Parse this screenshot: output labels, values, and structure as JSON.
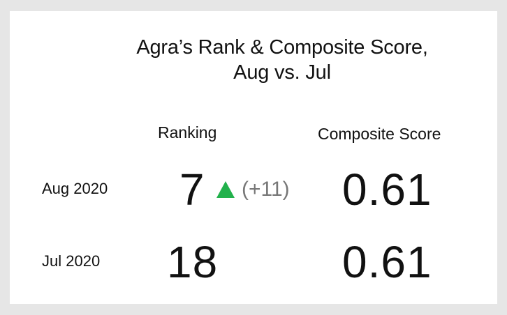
{
  "title": {
    "line1": "Agra’s Rank & Composite Score,",
    "line2": "Aug vs. Jul"
  },
  "columns": {
    "ranking": "Ranking",
    "composite_score": "Composite Score"
  },
  "rows": [
    {
      "label": "Aug 2020",
      "rank": "7",
      "rank_change": "(+11)",
      "rank_change_icon": "up-arrow-icon",
      "score": "0.61"
    },
    {
      "label": "Jul 2020",
      "rank": "18",
      "score": "0.61"
    }
  ],
  "colors": {
    "up": "#22b14c",
    "change_text": "#777777",
    "text": "#111111",
    "background": "#e6e6e6",
    "card": "#ffffff"
  }
}
